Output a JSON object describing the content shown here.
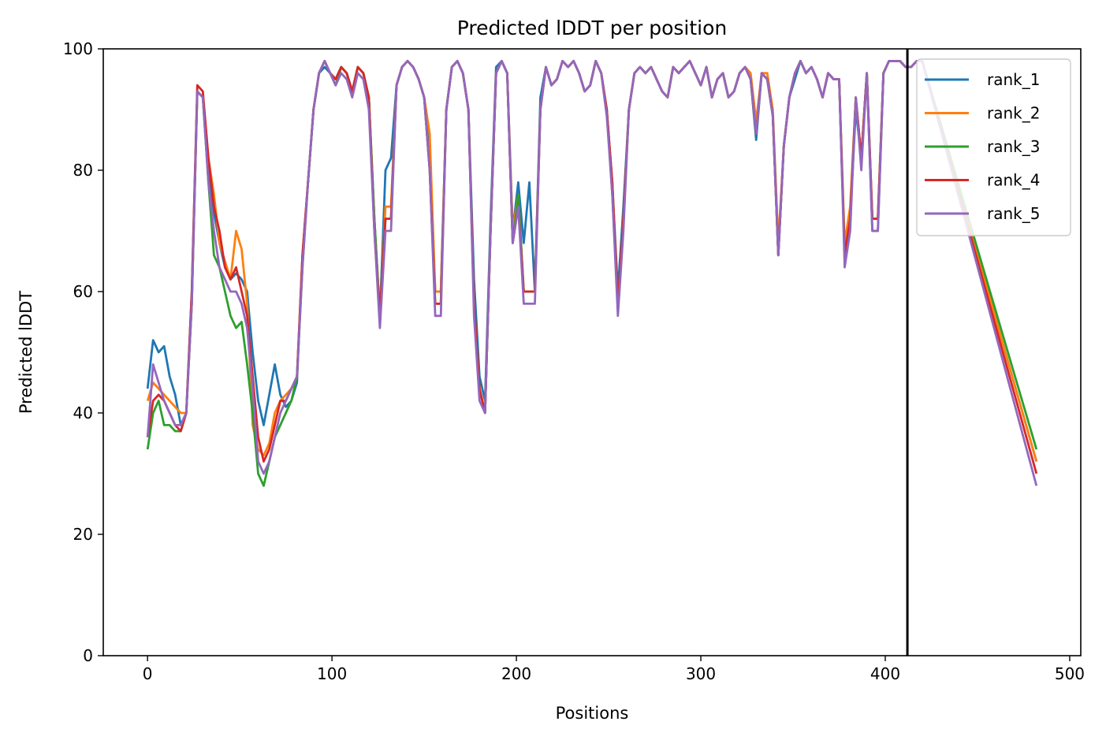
{
  "chart_data": {
    "type": "line",
    "title": "Predicted lDDT per position",
    "xlabel": "Positions",
    "ylabel": "Predicted lDDT",
    "xlim": [
      -24,
      506
    ],
    "ylim": [
      0,
      100
    ],
    "x_ticks": [
      0,
      100,
      200,
      300,
      400,
      500
    ],
    "y_ticks": [
      0,
      20,
      40,
      60,
      80,
      100
    ],
    "vertical_line_x": 412,
    "grid": false,
    "legend_position": "top-right",
    "x_step": 3,
    "x_end": 482,
    "series": [
      {
        "name": "rank_1",
        "color": "#1f77b4",
        "values": [
          44,
          52,
          50,
          51,
          46,
          43,
          38,
          40,
          60,
          93,
          92,
          80,
          73,
          68,
          64,
          62,
          63,
          62,
          60,
          50,
          42,
          38,
          43,
          48,
          43,
          41,
          42,
          45,
          66,
          78,
          90,
          96,
          97,
          96,
          95,
          97,
          96,
          93,
          97,
          96,
          92,
          72,
          56,
          80,
          82,
          94,
          97,
          98,
          97,
          95,
          92,
          82,
          60,
          60,
          90,
          97,
          98,
          96,
          90,
          62,
          46,
          42,
          72,
          97,
          98,
          96,
          70,
          78,
          68,
          78,
          60,
          92,
          97,
          94,
          95,
          98,
          97,
          98,
          96,
          93,
          94,
          98,
          96,
          90,
          78,
          60,
          74,
          90,
          96,
          97,
          96,
          97,
          95,
          93,
          92,
          97,
          96,
          97,
          98,
          96,
          94,
          97,
          92,
          95,
          96,
          92,
          93,
          96,
          97,
          95,
          85,
          96,
          95,
          89,
          66,
          84,
          92,
          95,
          98,
          96,
          97,
          95,
          92,
          96,
          95,
          95,
          66,
          72,
          90,
          82,
          96,
          70,
          70,
          96,
          98,
          98,
          98,
          97,
          97,
          98,
          98,
          32
        ]
      },
      {
        "name": "rank_2",
        "color": "#ff7f0e",
        "values": [
          42,
          45,
          44,
          43,
          42,
          41,
          40,
          40,
          58,
          93,
          92,
          82,
          76,
          68,
          65,
          62,
          70,
          67,
          58,
          38,
          34,
          33,
          35,
          40,
          42,
          43,
          44,
          46,
          66,
          78,
          90,
          96,
          98,
          96,
          94,
          97,
          96,
          93,
          97,
          96,
          92,
          72,
          56,
          74,
          74,
          94,
          97,
          98,
          97,
          95,
          92,
          86,
          60,
          60,
          90,
          97,
          98,
          96,
          90,
          58,
          44,
          40,
          70,
          96,
          98,
          96,
          70,
          76,
          60,
          60,
          60,
          90,
          97,
          94,
          95,
          98,
          97,
          98,
          96,
          93,
          94,
          98,
          96,
          89,
          78,
          58,
          72,
          90,
          96,
          97,
          96,
          97,
          95,
          93,
          92,
          97,
          96,
          97,
          98,
          96,
          94,
          97,
          92,
          95,
          96,
          92,
          93,
          96,
          97,
          96,
          88,
          96,
          96,
          90,
          68,
          84,
          92,
          96,
          98,
          96,
          97,
          95,
          92,
          96,
          95,
          95,
          68,
          74,
          92,
          82,
          96,
          72,
          72,
          96,
          98,
          98,
          98,
          97,
          97,
          98,
          98,
          32
        ]
      },
      {
        "name": "rank_3",
        "color": "#2ca02c",
        "values": [
          34,
          40,
          42,
          38,
          38,
          37,
          37,
          40,
          58,
          93,
          92,
          78,
          66,
          64,
          60,
          56,
          54,
          55,
          48,
          40,
          30,
          28,
          32,
          36,
          38,
          40,
          42,
          46,
          64,
          78,
          90,
          96,
          98,
          96,
          94,
          97,
          96,
          93,
          97,
          96,
          92,
          72,
          56,
          72,
          72,
          94,
          97,
          98,
          97,
          95,
          92,
          80,
          58,
          58,
          90,
          97,
          98,
          96,
          90,
          58,
          44,
          40,
          70,
          96,
          98,
          96,
          68,
          76,
          60,
          60,
          60,
          90,
          97,
          94,
          95,
          98,
          97,
          98,
          96,
          93,
          94,
          98,
          96,
          90,
          76,
          58,
          72,
          90,
          96,
          97,
          96,
          97,
          95,
          93,
          92,
          97,
          96,
          97,
          98,
          96,
          94,
          97,
          92,
          95,
          96,
          92,
          93,
          96,
          97,
          95,
          86,
          96,
          95,
          89,
          66,
          84,
          92,
          96,
          98,
          96,
          97,
          95,
          92,
          96,
          95,
          95,
          66,
          72,
          92,
          82,
          96,
          72,
          72,
          96,
          98,
          98,
          98,
          97,
          97,
          98,
          98,
          34
        ]
      },
      {
        "name": "rank_4",
        "color": "#d62728",
        "values": [
          36,
          42,
          43,
          42,
          40,
          38,
          37,
          40,
          60,
          94,
          93,
          82,
          74,
          70,
          64,
          62,
          64,
          60,
          56,
          46,
          36,
          32,
          34,
          38,
          42,
          42,
          44,
          46,
          66,
          78,
          90,
          96,
          98,
          96,
          95,
          97,
          96,
          93,
          97,
          96,
          92,
          70,
          56,
          72,
          72,
          94,
          97,
          98,
          97,
          95,
          92,
          80,
          58,
          58,
          90,
          97,
          98,
          96,
          90,
          58,
          44,
          40,
          70,
          96,
          98,
          96,
          68,
          74,
          60,
          60,
          60,
          90,
          97,
          94,
          95,
          98,
          97,
          98,
          96,
          93,
          94,
          98,
          96,
          90,
          78,
          58,
          72,
          90,
          96,
          97,
          96,
          97,
          95,
          93,
          92,
          97,
          96,
          97,
          98,
          96,
          94,
          97,
          92,
          95,
          96,
          92,
          93,
          96,
          97,
          95,
          86,
          96,
          95,
          89,
          66,
          84,
          92,
          96,
          98,
          96,
          97,
          95,
          92,
          96,
          95,
          95,
          66,
          72,
          92,
          82,
          96,
          72,
          72,
          96,
          98,
          98,
          98,
          97,
          97,
          98,
          98,
          30
        ]
      },
      {
        "name": "rank_5",
        "color": "#9467bd",
        "values": [
          36,
          48,
          45,
          42,
          40,
          38,
          38,
          40,
          58,
          93,
          92,
          78,
          70,
          64,
          62,
          60,
          60,
          58,
          54,
          44,
          32,
          30,
          32,
          36,
          40,
          42,
          44,
          46,
          64,
          78,
          90,
          96,
          98,
          96,
          94,
          96,
          95,
          92,
          96,
          95,
          90,
          70,
          54,
          70,
          70,
          94,
          97,
          98,
          97,
          95,
          92,
          80,
          56,
          56,
          90,
          97,
          98,
          96,
          90,
          56,
          42,
          40,
          70,
          96,
          98,
          96,
          68,
          74,
          58,
          58,
          58,
          90,
          97,
          94,
          95,
          98,
          97,
          98,
          96,
          93,
          94,
          98,
          96,
          89,
          76,
          56,
          70,
          90,
          96,
          97,
          96,
          97,
          95,
          93,
          92,
          97,
          96,
          97,
          98,
          96,
          94,
          97,
          92,
          95,
          96,
          92,
          93,
          96,
          97,
          95,
          86,
          96,
          95,
          89,
          66,
          84,
          92,
          96,
          98,
          96,
          97,
          95,
          92,
          96,
          95,
          95,
          64,
          70,
          92,
          80,
          96,
          70,
          70,
          96,
          98,
          98,
          98,
          97,
          97,
          98,
          98,
          28
        ]
      }
    ]
  }
}
